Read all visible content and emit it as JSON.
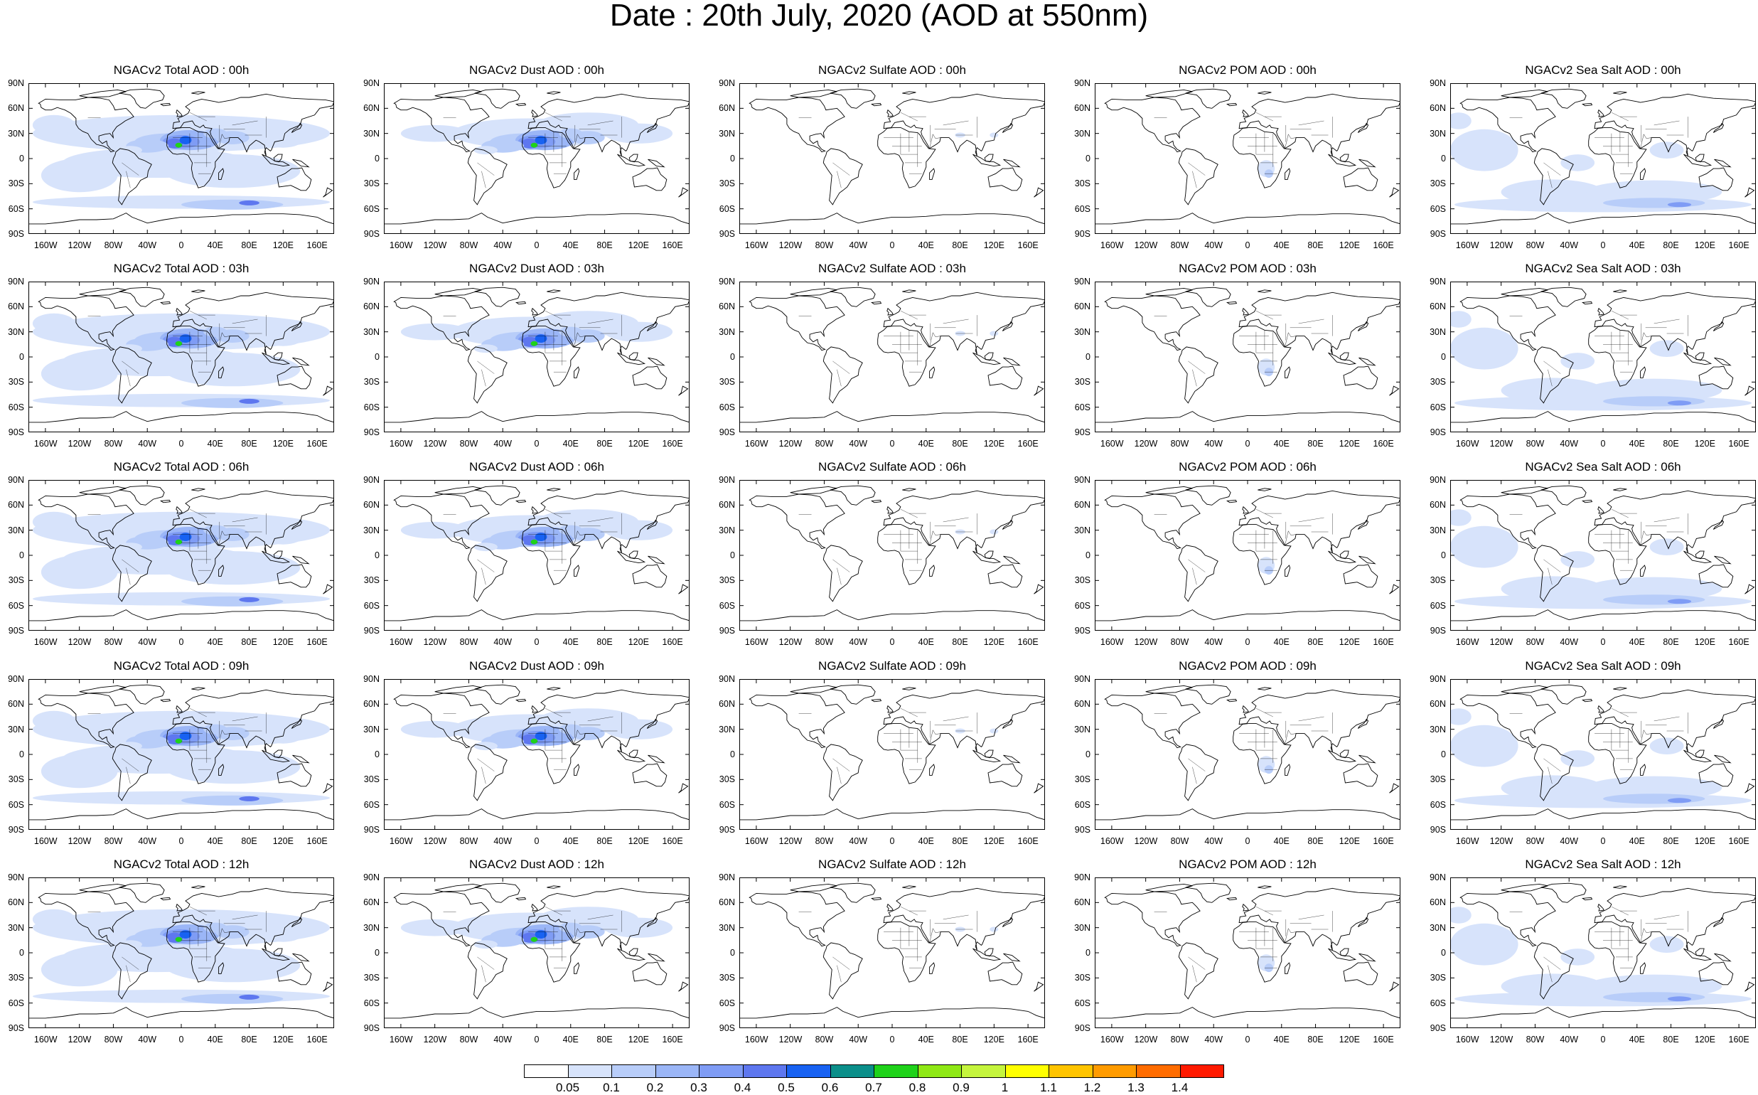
{
  "figure_title": "Date : 20th July, 2020 (AOD at 550nm)",
  "lat_labels": [
    "90N",
    "60N",
    "30N",
    "0",
    "30S",
    "60S",
    "90S"
  ],
  "lon_labels": [
    "160W",
    "120W",
    "80W",
    "40W",
    "0",
    "40E",
    "80E",
    "120E",
    "160E"
  ],
  "panels": [
    {
      "title": "NGACv2 Total AOD : 00h",
      "species": "total",
      "hour": "00h"
    },
    {
      "title": "NGACv2 Dust AOD : 00h",
      "species": "dust",
      "hour": "00h"
    },
    {
      "title": "NGACv2 Sulfate AOD : 00h",
      "species": "sulfate",
      "hour": "00h"
    },
    {
      "title": "NGACv2 POM AOD : 00h",
      "species": "pom",
      "hour": "00h"
    },
    {
      "title": "NGACv2 Sea Salt AOD : 00h",
      "species": "seasalt",
      "hour": "00h"
    },
    {
      "title": "NGACv2 Total AOD : 03h",
      "species": "total",
      "hour": "03h"
    },
    {
      "title": "NGACv2 Dust AOD : 03h",
      "species": "dust",
      "hour": "03h"
    },
    {
      "title": "NGACv2 Sulfate AOD : 03h",
      "species": "sulfate",
      "hour": "03h"
    },
    {
      "title": "NGACv2 POM AOD : 03h",
      "species": "pom",
      "hour": "03h"
    },
    {
      "title": "NGACv2 Sea Salt AOD : 03h",
      "species": "seasalt",
      "hour": "03h"
    },
    {
      "title": "NGACv2 Total AOD : 06h",
      "species": "total",
      "hour": "06h"
    },
    {
      "title": "NGACv2 Dust AOD : 06h",
      "species": "dust",
      "hour": "06h"
    },
    {
      "title": "NGACv2 Sulfate AOD : 06h",
      "species": "sulfate",
      "hour": "06h"
    },
    {
      "title": "NGACv2 POM AOD : 06h",
      "species": "pom",
      "hour": "06h"
    },
    {
      "title": "NGACv2 Sea Salt AOD : 06h",
      "species": "seasalt",
      "hour": "06h"
    },
    {
      "title": "NGACv2 Total AOD : 09h",
      "species": "total",
      "hour": "09h"
    },
    {
      "title": "NGACv2 Dust AOD : 09h",
      "species": "dust",
      "hour": "09h"
    },
    {
      "title": "NGACv2 Sulfate AOD : 09h",
      "species": "sulfate",
      "hour": "09h"
    },
    {
      "title": "NGACv2 POM AOD : 09h",
      "species": "pom",
      "hour": "09h"
    },
    {
      "title": "NGACv2 Sea Salt  AOD : 09h",
      "species": "seasalt",
      "hour": "09h"
    },
    {
      "title": "NGACv2 Total AOD  : 12h",
      "species": "total",
      "hour": "12h"
    },
    {
      "title": "NGACv2 Dust AOD : 12h",
      "species": "dust",
      "hour": "12h"
    },
    {
      "title": "NGACv2 Sulfate AOD : 12h",
      "species": "sulfate",
      "hour": "12h"
    },
    {
      "title": "NGACv2 POM  AOD : 12h",
      "species": "pom",
      "hour": "12h"
    },
    {
      "title": "NGACv2 Sea Salt  AOD : 12h",
      "species": "seasalt",
      "hour": "12h"
    }
  ],
  "colorbar": {
    "labels": [
      "0.05",
      "0.1",
      "0.2",
      "0.3",
      "0.4",
      "0.5",
      "0.6",
      "0.7",
      "0.8",
      "0.9",
      "1",
      "1.1",
      "1.2",
      "1.3",
      "1.4"
    ],
    "colors": [
      "#ffffff",
      "#d7e3fb",
      "#b8cdf9",
      "#9bb6f7",
      "#7f9cf5",
      "#5e77ef",
      "#1862f2",
      "#0b8f8a",
      "#1fd21a",
      "#8fe815",
      "#c5f53d",
      "#ffff00",
      "#ffc400",
      "#ff9b00",
      "#ff6c00",
      "#ff1a00"
    ]
  }
}
